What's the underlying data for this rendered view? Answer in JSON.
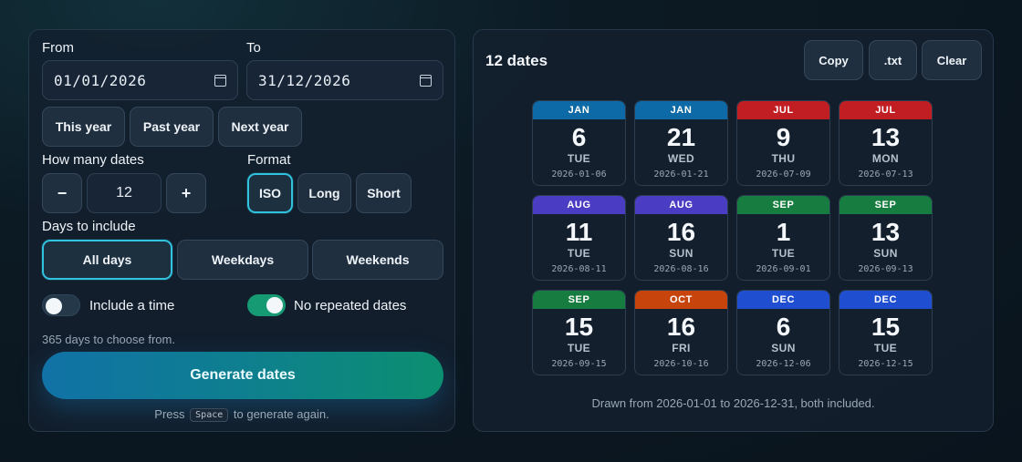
{
  "form": {
    "from_label": "From",
    "from_value": "01/01/2026",
    "to_label": "To",
    "to_value": "31/12/2026",
    "presets": [
      "This year",
      "Past year",
      "Next year"
    ],
    "count_label": "How many dates",
    "minus_label": "−",
    "plus_label": "+",
    "count_value": "12",
    "format_label": "Format",
    "formats": [
      "ISO",
      "Long",
      "Short"
    ],
    "format_selected": "ISO",
    "days_label": "Days to include",
    "days_options": [
      "All days",
      "Weekdays",
      "Weekends"
    ],
    "days_selected": "All days",
    "include_time_label": "Include a time",
    "include_time_on": false,
    "no_repeat_label": "No repeated dates",
    "no_repeat_on": true,
    "hint": "365 days to choose from.",
    "generate_label": "Generate dates",
    "press_before": "Press",
    "press_key": "Space",
    "press_after": "to generate again."
  },
  "results": {
    "title": "12 dates",
    "copy_label": "Copy",
    "txt_label": ".txt",
    "clear_label": "Clear",
    "dates": [
      {
        "month": "JAN",
        "day": "6",
        "weekday": "TUE",
        "iso": "2026-01-06",
        "color": "#0d6aa6"
      },
      {
        "month": "JAN",
        "day": "21",
        "weekday": "WED",
        "iso": "2026-01-21",
        "color": "#0d6aa6"
      },
      {
        "month": "JUL",
        "day": "9",
        "weekday": "THU",
        "iso": "2026-07-09",
        "color": "#c11e24"
      },
      {
        "month": "JUL",
        "day": "13",
        "weekday": "MON",
        "iso": "2026-07-13",
        "color": "#c11e24"
      },
      {
        "month": "AUG",
        "day": "11",
        "weekday": "TUE",
        "iso": "2026-08-11",
        "color": "#4b3cc4"
      },
      {
        "month": "AUG",
        "day": "16",
        "weekday": "SUN",
        "iso": "2026-08-16",
        "color": "#4b3cc4"
      },
      {
        "month": "SEP",
        "day": "1",
        "weekday": "TUE",
        "iso": "2026-09-01",
        "color": "#167c3f"
      },
      {
        "month": "SEP",
        "day": "13",
        "weekday": "SUN",
        "iso": "2026-09-13",
        "color": "#167c3f"
      },
      {
        "month": "SEP",
        "day": "15",
        "weekday": "TUE",
        "iso": "2026-09-15",
        "color": "#167c3f"
      },
      {
        "month": "OCT",
        "day": "16",
        "weekday": "FRI",
        "iso": "2026-10-16",
        "color": "#c7450c"
      },
      {
        "month": "DEC",
        "day": "6",
        "weekday": "SUN",
        "iso": "2026-12-06",
        "color": "#1f4fd0"
      },
      {
        "month": "DEC",
        "day": "15",
        "weekday": "TUE",
        "iso": "2026-12-15",
        "color": "#1f4fd0"
      }
    ],
    "footer": "Drawn from 2026-01-01 to 2026-12-31, both included."
  }
}
